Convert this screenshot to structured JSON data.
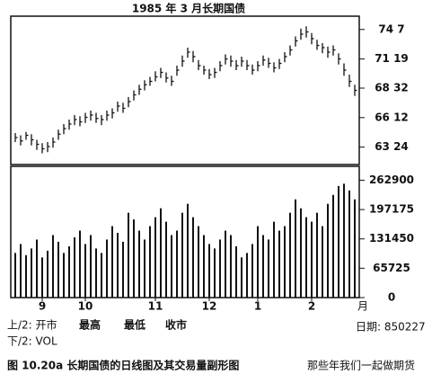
{
  "chart_data": [
    {
      "type": "ohlc",
      "title": "1985 年 3 月长期国债",
      "color": "#111",
      "high": [
        65.0,
        64.8,
        65.1,
        64.9,
        64.4,
        64.1,
        64.2,
        64.6,
        65.3,
        65.8,
        66.2,
        66.6,
        66.5,
        66.8,
        67.0,
        66.8,
        66.6,
        67.0,
        67.2,
        67.8,
        67.7,
        68.2,
        68.8,
        69.3,
        69.7,
        70.0,
        70.5,
        70.8,
        70.4,
        70.1,
        71.0,
        71.9,
        72.6,
        72.3,
        71.5,
        71.0,
        70.7,
        70.8,
        71.4,
        72.0,
        71.9,
        71.5,
        71.8,
        71.5,
        71.1,
        71.4,
        71.9,
        71.7,
        71.3,
        71.6,
        72.2,
        72.8,
        73.6,
        74.3,
        74.5,
        73.9,
        73.3,
        73.0,
        72.7,
        72.8,
        72.1,
        71.2,
        70.2,
        69.3
      ],
      "low": [
        64.2,
        63.9,
        64.4,
        63.9,
        63.5,
        63.2,
        63.3,
        63.7,
        64.4,
        64.9,
        65.3,
        65.7,
        65.6,
        65.9,
        66.1,
        65.9,
        65.7,
        66.1,
        66.3,
        66.9,
        66.8,
        67.3,
        67.9,
        68.4,
        68.8,
        69.2,
        69.6,
        69.9,
        69.5,
        69.2,
        70.1,
        70.9,
        71.7,
        71.3,
        70.6,
        70.2,
        69.8,
        69.9,
        70.5,
        71.1,
        70.9,
        70.6,
        70.9,
        70.6,
        70.2,
        70.5,
        71.0,
        70.8,
        70.4,
        70.7,
        71.3,
        71.9,
        72.7,
        73.3,
        73.5,
        72.9,
        72.4,
        72.1,
        71.7,
        71.9,
        71.1,
        70.1,
        69.1,
        68.3
      ],
      "close": [
        64.6,
        64.3,
        64.8,
        64.4,
        64.0,
        63.6,
        63.8,
        64.2,
        64.9,
        65.4,
        65.8,
        66.2,
        66.0,
        66.4,
        66.6,
        66.3,
        66.2,
        66.6,
        66.8,
        67.4,
        67.2,
        67.8,
        68.4,
        68.9,
        69.3,
        69.6,
        70.0,
        70.4,
        69.9,
        69.6,
        70.6,
        71.4,
        72.2,
        71.8,
        71.0,
        70.6,
        70.2,
        70.4,
        71.0,
        71.6,
        71.4,
        71.0,
        71.4,
        71.0,
        70.6,
        71.0,
        71.5,
        71.2,
        70.8,
        71.2,
        71.8,
        72.4,
        73.2,
        73.8,
        74.0,
        73.4,
        72.8,
        72.6,
        72.2,
        72.4,
        71.6,
        70.6,
        69.6,
        68.8
      ],
      "ylim": [
        62.2,
        75.4
      ],
      "yticks": [
        {
          "value": 74.21875,
          "label": "74 7"
        },
        {
          "value": 71.59375,
          "label": "71 19"
        },
        {
          "value": 69,
          "label": "68 32"
        },
        {
          "value": 66.375,
          "label": "66 12"
        },
        {
          "value": 63.75,
          "label": "63 24"
        }
      ]
    },
    {
      "type": "bar",
      "color": "#111",
      "x_unit": "月",
      "categories": [
        null,
        null,
        null,
        null,
        null,
        "9",
        null,
        null,
        null,
        null,
        null,
        null,
        null,
        "10",
        null,
        null,
        null,
        null,
        null,
        null,
        null,
        null,
        null,
        null,
        null,
        null,
        "11",
        null,
        null,
        null,
        null,
        null,
        null,
        null,
        null,
        null,
        "12",
        null,
        null,
        null,
        null,
        null,
        null,
        null,
        null,
        "1",
        null,
        null,
        null,
        null,
        null,
        null,
        null,
        null,
        null,
        "2",
        null,
        null,
        null,
        null,
        null,
        null,
        null,
        null
      ],
      "values": [
        100000,
        120000,
        95000,
        110000,
        130000,
        90000,
        105000,
        140000,
        125000,
        100000,
        115000,
        135000,
        150000,
        120000,
        140000,
        110000,
        100000,
        130000,
        160000,
        145000,
        125000,
        190000,
        175000,
        150000,
        130000,
        160000,
        180000,
        200000,
        170000,
        140000,
        150000,
        190000,
        210000,
        180000,
        160000,
        140000,
        120000,
        110000,
        130000,
        150000,
        140000,
        115000,
        90000,
        100000,
        120000,
        160000,
        140000,
        130000,
        170000,
        150000,
        160000,
        190000,
        220000,
        200000,
        180000,
        170000,
        190000,
        160000,
        210000,
        230000,
        250000,
        255000,
        240000,
        220000
      ],
      "ylim": [
        0,
        294000
      ],
      "yticks": [
        0,
        65725,
        131450,
        197175,
        262900
      ]
    }
  ],
  "footer": {
    "top_prefix": "上/2: 开市",
    "high": "最高",
    "low": "最低",
    "close": "收市",
    "bottom": "下/2: VOL",
    "date": "日期: 850227",
    "caption": "图 10.20a   长期国债的日线图及其交易量副形图",
    "watermark": "那些年我们一起做期货"
  }
}
